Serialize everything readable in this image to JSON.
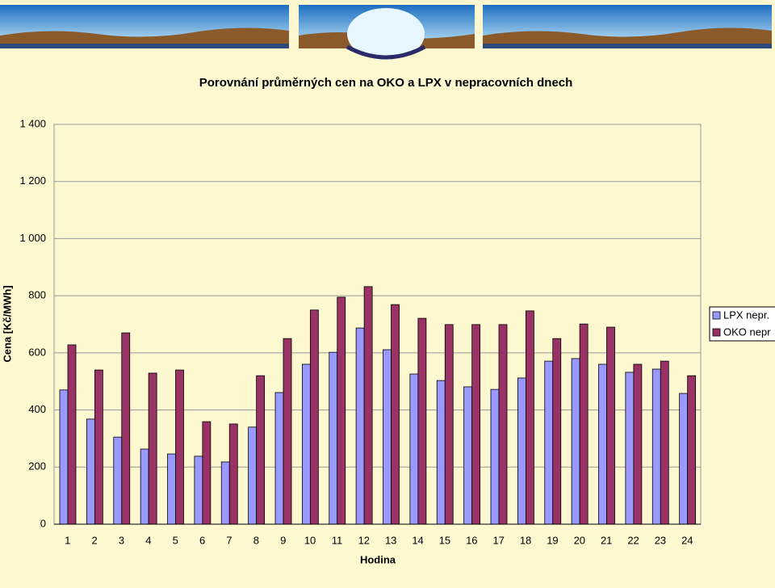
{
  "chart_data": {
    "type": "bar",
    "title": "Porovnání průměrných cen na OKO a LPX v nepracovních dnech",
    "x_label": "Hodina",
    "y_label": "Cena [Kč/MWh]",
    "categories": [
      "1",
      "2",
      "3",
      "4",
      "5",
      "6",
      "7",
      "8",
      "9",
      "10",
      "11",
      "12",
      "13",
      "14",
      "15",
      "16",
      "17",
      "18",
      "19",
      "20",
      "21",
      "22",
      "23",
      "24"
    ],
    "series": [
      {
        "name": "LPX nepr.",
        "color": "#9999ff",
        "values": [
          470,
          368,
          305,
          263,
          246,
          238,
          218,
          340,
          461,
          560,
          602,
          687,
          611,
          526,
          503,
          481,
          472,
          512,
          571,
          580,
          560,
          532,
          543,
          458
        ]
      },
      {
        "name": "OKO nepr",
        "color": "#993366",
        "values": [
          628,
          540,
          670,
          529,
          540,
          359,
          351,
          520,
          650,
          750,
          795,
          832,
          769,
          721,
          699,
          699,
          699,
          747,
          650,
          701,
          690,
          560,
          571,
          520
        ]
      }
    ],
    "ylim": [
      0,
      1400
    ],
    "yticks": [
      0,
      200,
      400,
      600,
      800,
      {
        "value": 1000,
        "label": "1 000"
      },
      {
        "value": 1200,
        "label": "1 200"
      },
      {
        "value": 1400,
        "label": "1 400"
      }
    ],
    "grid": true,
    "legend": "right"
  }
}
